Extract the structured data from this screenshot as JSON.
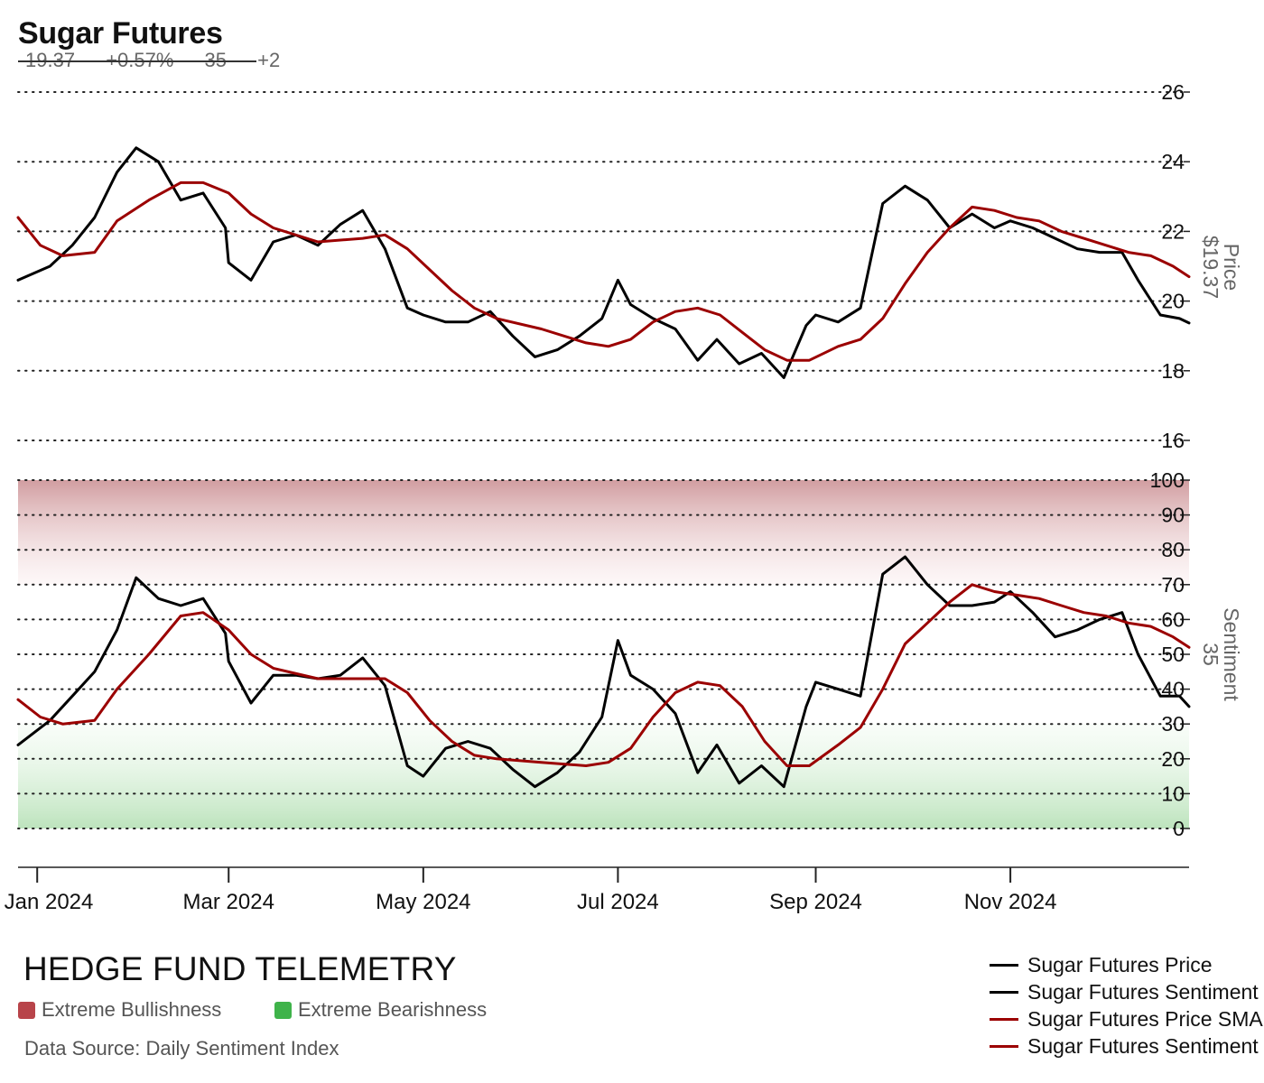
{
  "header": {
    "title": "Sugar Futures",
    "stats": [
      "19.37",
      "+0.57%",
      "35",
      "+2"
    ]
  },
  "footer": {
    "brand": "HEDGE FUND TELEMETRY",
    "band_legend": [
      {
        "label": "Extreme Bullishness",
        "color": "#b8444a"
      },
      {
        "label": "Extreme Bearishness",
        "color": "#3fb34a"
      }
    ],
    "source": "Data Source: Daily Sentiment Index"
  },
  "legend": [
    {
      "label": "Sugar Futures Price",
      "color": "#000000"
    },
    {
      "label": "Sugar Futures Sentiment",
      "color": "#000000"
    },
    {
      "label": "Sugar Futures Price SMA",
      "color": "#9b0000"
    },
    {
      "label": "Sugar Futures Sentiment SMA",
      "color": "#9b0000"
    }
  ],
  "chart_data": [
    {
      "type": "line",
      "panel": "price",
      "ylabel": "Price",
      "ylabel_value": "$19.37",
      "ylim": [
        16,
        26
      ],
      "yticks": [
        16,
        18,
        20,
        22,
        24,
        26
      ],
      "grid": true,
      "x_ticks": [
        "Jan 2024",
        "Mar 2024",
        "May 2024",
        "Jul 2024",
        "Sep 2024",
        "Nov 2024"
      ],
      "x_tick_dates": [
        "2024-01-01",
        "2024-03-01",
        "2024-05-01",
        "2024-07-01",
        "2024-09-01",
        "2024-11-01"
      ],
      "x_range": [
        "2023-12-26",
        "2024-12-27"
      ],
      "series": [
        {
          "name": "Sugar Futures Price",
          "color": "#000000",
          "points": [
            [
              "2023-12-26",
              20.6
            ],
            [
              "2024-01-05",
              21.0
            ],
            [
              "2024-01-12",
              21.6
            ],
            [
              "2024-01-19",
              22.4
            ],
            [
              "2024-01-26",
              23.7
            ],
            [
              "2024-02-01",
              24.4
            ],
            [
              "2024-02-08",
              24.0
            ],
            [
              "2024-02-15",
              22.9
            ],
            [
              "2024-02-22",
              23.1
            ],
            [
              "2024-02-29",
              22.1
            ],
            [
              "2024-03-01",
              21.1
            ],
            [
              "2024-03-08",
              20.6
            ],
            [
              "2024-03-15",
              21.7
            ],
            [
              "2024-03-22",
              21.9
            ],
            [
              "2024-03-29",
              21.6
            ],
            [
              "2024-04-05",
              22.2
            ],
            [
              "2024-04-12",
              22.6
            ],
            [
              "2024-04-19",
              21.5
            ],
            [
              "2024-04-26",
              19.8
            ],
            [
              "2024-05-01",
              19.6
            ],
            [
              "2024-05-08",
              19.4
            ],
            [
              "2024-05-15",
              19.4
            ],
            [
              "2024-05-22",
              19.7
            ],
            [
              "2024-05-29",
              19.0
            ],
            [
              "2024-06-05",
              18.4
            ],
            [
              "2024-06-12",
              18.6
            ],
            [
              "2024-06-19",
              19.0
            ],
            [
              "2024-06-26",
              19.5
            ],
            [
              "2024-07-01",
              20.6
            ],
            [
              "2024-07-05",
              19.9
            ],
            [
              "2024-07-12",
              19.5
            ],
            [
              "2024-07-19",
              19.2
            ],
            [
              "2024-07-26",
              18.3
            ],
            [
              "2024-08-01",
              18.9
            ],
            [
              "2024-08-08",
              18.2
            ],
            [
              "2024-08-15",
              18.5
            ],
            [
              "2024-08-22",
              17.8
            ],
            [
              "2024-08-29",
              19.3
            ],
            [
              "2024-09-01",
              19.6
            ],
            [
              "2024-09-08",
              19.4
            ],
            [
              "2024-09-15",
              19.8
            ],
            [
              "2024-09-22",
              22.8
            ],
            [
              "2024-09-29",
              23.3
            ],
            [
              "2024-10-06",
              22.9
            ],
            [
              "2024-10-13",
              22.1
            ],
            [
              "2024-10-20",
              22.5
            ],
            [
              "2024-10-27",
              22.1
            ],
            [
              "2024-11-01",
              22.3
            ],
            [
              "2024-11-08",
              22.1
            ],
            [
              "2024-11-15",
              21.8
            ],
            [
              "2024-11-22",
              21.5
            ],
            [
              "2024-11-29",
              21.4
            ],
            [
              "2024-12-06",
              21.4
            ],
            [
              "2024-12-11",
              20.6
            ],
            [
              "2024-12-18",
              19.6
            ],
            [
              "2024-12-24",
              19.5
            ],
            [
              "2024-12-27",
              19.37
            ]
          ]
        },
        {
          "name": "Sugar Futures Price SMA",
          "color": "#9b0000",
          "points": [
            [
              "2023-12-26",
              22.4
            ],
            [
              "2024-01-02",
              21.6
            ],
            [
              "2024-01-09",
              21.3
            ],
            [
              "2024-01-19",
              21.4
            ],
            [
              "2024-01-26",
              22.3
            ],
            [
              "2024-02-05",
              22.9
            ],
            [
              "2024-02-15",
              23.4
            ],
            [
              "2024-02-22",
              23.4
            ],
            [
              "2024-03-01",
              23.1
            ],
            [
              "2024-03-08",
              22.5
            ],
            [
              "2024-03-15",
              22.1
            ],
            [
              "2024-03-29",
              21.7
            ],
            [
              "2024-04-12",
              21.8
            ],
            [
              "2024-04-19",
              21.9
            ],
            [
              "2024-04-26",
              21.5
            ],
            [
              "2024-05-03",
              20.9
            ],
            [
              "2024-05-10",
              20.3
            ],
            [
              "2024-05-17",
              19.8
            ],
            [
              "2024-05-24",
              19.5
            ],
            [
              "2024-06-07",
              19.2
            ],
            [
              "2024-06-21",
              18.8
            ],
            [
              "2024-06-28",
              18.7
            ],
            [
              "2024-07-05",
              18.9
            ],
            [
              "2024-07-12",
              19.4
            ],
            [
              "2024-07-19",
              19.7
            ],
            [
              "2024-07-26",
              19.8
            ],
            [
              "2024-08-02",
              19.6
            ],
            [
              "2024-08-09",
              19.1
            ],
            [
              "2024-08-16",
              18.6
            ],
            [
              "2024-08-23",
              18.3
            ],
            [
              "2024-08-30",
              18.3
            ],
            [
              "2024-09-08",
              18.7
            ],
            [
              "2024-09-15",
              18.9
            ],
            [
              "2024-09-22",
              19.5
            ],
            [
              "2024-09-29",
              20.5
            ],
            [
              "2024-10-06",
              21.4
            ],
            [
              "2024-10-13",
              22.1
            ],
            [
              "2024-10-20",
              22.7
            ],
            [
              "2024-10-27",
              22.6
            ],
            [
              "2024-11-03",
              22.4
            ],
            [
              "2024-11-10",
              22.3
            ],
            [
              "2024-11-17",
              22.0
            ],
            [
              "2024-11-24",
              21.8
            ],
            [
              "2024-12-01",
              21.6
            ],
            [
              "2024-12-08",
              21.4
            ],
            [
              "2024-12-15",
              21.3
            ],
            [
              "2024-12-22",
              21.0
            ],
            [
              "2024-12-27",
              20.7
            ]
          ]
        }
      ]
    },
    {
      "type": "line",
      "panel": "sentiment",
      "ylabel": "Sentiment",
      "ylabel_value": "35",
      "ylim": [
        0,
        100
      ],
      "yticks": [
        0,
        10,
        20,
        30,
        40,
        50,
        60,
        70,
        80,
        90,
        100
      ],
      "grid": true,
      "bands": [
        {
          "name": "Extreme Bullishness",
          "from": 70,
          "to": 100,
          "color": "#b8444a"
        },
        {
          "name": "Extreme Bearishness",
          "from": 0,
          "to": 30,
          "color": "#3fb34a"
        }
      ],
      "series": [
        {
          "name": "Sugar Futures Sentiment",
          "color": "#000000",
          "points": [
            [
              "2023-12-26",
              24
            ],
            [
              "2024-01-05",
              31
            ],
            [
              "2024-01-12",
              38
            ],
            [
              "2024-01-19",
              45
            ],
            [
              "2024-01-26",
              57
            ],
            [
              "2024-02-01",
              72
            ],
            [
              "2024-02-08",
              66
            ],
            [
              "2024-02-15",
              64
            ],
            [
              "2024-02-22",
              66
            ],
            [
              "2024-02-29",
              56
            ],
            [
              "2024-03-01",
              48
            ],
            [
              "2024-03-08",
              36
            ],
            [
              "2024-03-15",
              44
            ],
            [
              "2024-03-22",
              44
            ],
            [
              "2024-03-29",
              43
            ],
            [
              "2024-04-05",
              44
            ],
            [
              "2024-04-12",
              49
            ],
            [
              "2024-04-19",
              41
            ],
            [
              "2024-04-26",
              18
            ],
            [
              "2024-05-01",
              15
            ],
            [
              "2024-05-08",
              23
            ],
            [
              "2024-05-15",
              25
            ],
            [
              "2024-05-22",
              23
            ],
            [
              "2024-05-29",
              17
            ],
            [
              "2024-06-05",
              12
            ],
            [
              "2024-06-12",
              16
            ],
            [
              "2024-06-19",
              22
            ],
            [
              "2024-06-26",
              32
            ],
            [
              "2024-07-01",
              54
            ],
            [
              "2024-07-05",
              44
            ],
            [
              "2024-07-12",
              40
            ],
            [
              "2024-07-19",
              33
            ],
            [
              "2024-07-26",
              16
            ],
            [
              "2024-08-01",
              24
            ],
            [
              "2024-08-08",
              13
            ],
            [
              "2024-08-15",
              18
            ],
            [
              "2024-08-22",
              12
            ],
            [
              "2024-08-29",
              35
            ],
            [
              "2024-09-01",
              42
            ],
            [
              "2024-09-08",
              40
            ],
            [
              "2024-09-15",
              38
            ],
            [
              "2024-09-22",
              73
            ],
            [
              "2024-09-29",
              78
            ],
            [
              "2024-10-06",
              70
            ],
            [
              "2024-10-13",
              64
            ],
            [
              "2024-10-20",
              64
            ],
            [
              "2024-10-27",
              65
            ],
            [
              "2024-11-01",
              68
            ],
            [
              "2024-11-08",
              62
            ],
            [
              "2024-11-15",
              55
            ],
            [
              "2024-11-22",
              57
            ],
            [
              "2024-11-29",
              60
            ],
            [
              "2024-12-06",
              62
            ],
            [
              "2024-12-11",
              50
            ],
            [
              "2024-12-18",
              38
            ],
            [
              "2024-12-24",
              38
            ],
            [
              "2024-12-27",
              35
            ]
          ]
        },
        {
          "name": "Sugar Futures Sentiment SMA",
          "color": "#9b0000",
          "points": [
            [
              "2023-12-26",
              37
            ],
            [
              "2024-01-02",
              32
            ],
            [
              "2024-01-09",
              30
            ],
            [
              "2024-01-19",
              31
            ],
            [
              "2024-01-26",
              40
            ],
            [
              "2024-02-05",
              50
            ],
            [
              "2024-02-15",
              61
            ],
            [
              "2024-02-22",
              62
            ],
            [
              "2024-03-01",
              57
            ],
            [
              "2024-03-08",
              50
            ],
            [
              "2024-03-15",
              46
            ],
            [
              "2024-03-29",
              43
            ],
            [
              "2024-04-12",
              43
            ],
            [
              "2024-04-19",
              43
            ],
            [
              "2024-04-26",
              39
            ],
            [
              "2024-05-03",
              31
            ],
            [
              "2024-05-10",
              25
            ],
            [
              "2024-05-17",
              21
            ],
            [
              "2024-05-24",
              20
            ],
            [
              "2024-06-07",
              19
            ],
            [
              "2024-06-21",
              18
            ],
            [
              "2024-06-28",
              19
            ],
            [
              "2024-07-05",
              23
            ],
            [
              "2024-07-12",
              32
            ],
            [
              "2024-07-19",
              39
            ],
            [
              "2024-07-26",
              42
            ],
            [
              "2024-08-02",
              41
            ],
            [
              "2024-08-09",
              35
            ],
            [
              "2024-08-16",
              25
            ],
            [
              "2024-08-23",
              18
            ],
            [
              "2024-08-30",
              18
            ],
            [
              "2024-09-08",
              24
            ],
            [
              "2024-09-15",
              29
            ],
            [
              "2024-09-22",
              40
            ],
            [
              "2024-09-29",
              53
            ],
            [
              "2024-10-06",
              59
            ],
            [
              "2024-10-13",
              65
            ],
            [
              "2024-10-20",
              70
            ],
            [
              "2024-10-27",
              68
            ],
            [
              "2024-11-03",
              67
            ],
            [
              "2024-11-10",
              66
            ],
            [
              "2024-11-17",
              64
            ],
            [
              "2024-11-24",
              62
            ],
            [
              "2024-12-01",
              61
            ],
            [
              "2024-12-08",
              59
            ],
            [
              "2024-12-15",
              58
            ],
            [
              "2024-12-22",
              55
            ],
            [
              "2024-12-27",
              52
            ]
          ]
        }
      ]
    }
  ]
}
